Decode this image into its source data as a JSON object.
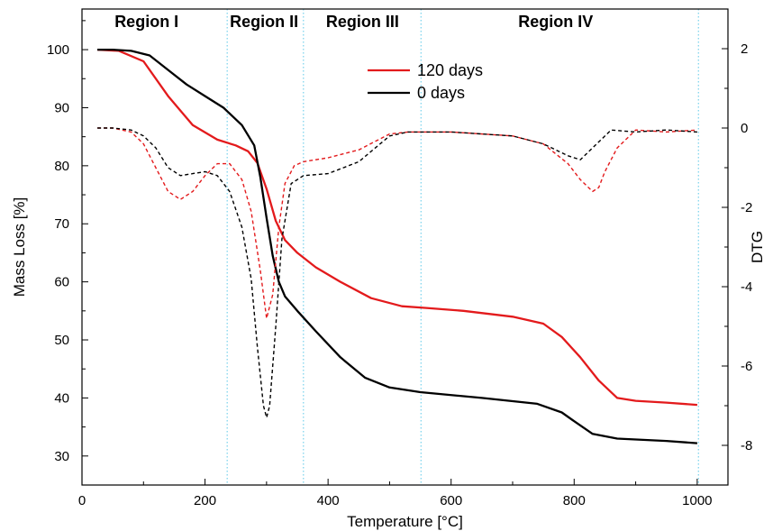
{
  "chart_data": {
    "type": "line",
    "xlabel": "Temperature [°C]",
    "ylabel": "Mass Loss [%]",
    "y2label": "DTG",
    "xlim": [
      0,
      1050
    ],
    "ylim": [
      25,
      107
    ],
    "y2lim": [
      -9,
      3
    ],
    "xticks": [
      0,
      200,
      400,
      600,
      800,
      1000
    ],
    "yticks": [
      30,
      40,
      50,
      60,
      70,
      80,
      90,
      100
    ],
    "y2ticks": [
      2,
      0,
      -2,
      -4,
      -6,
      -8
    ],
    "grid": false,
    "legend_position": "top-center",
    "region_boundaries": [
      236,
      360,
      551,
      1002
    ],
    "regions": [
      {
        "label": "Region I",
        "center": 105
      },
      {
        "label": "Region II",
        "center": 296
      },
      {
        "label": "Region III",
        "center": 456
      },
      {
        "label": "Region IV",
        "center": 770
      }
    ],
    "series": [
      {
        "name": "120 days",
        "axis": "left",
        "style": "solid",
        "color": "#e31a1c",
        "x": [
          25,
          60,
          100,
          140,
          180,
          220,
          250,
          270,
          285,
          300,
          315,
          330,
          350,
          380,
          420,
          470,
          520,
          560,
          620,
          700,
          750,
          780,
          810,
          840,
          870,
          900,
          950,
          1000
        ],
        "y": [
          100,
          99.8,
          98,
          92,
          87,
          84.5,
          83.5,
          82.5,
          80.5,
          76,
          70.5,
          67.2,
          65,
          62.5,
          60,
          57.2,
          55.8,
          55.5,
          55,
          54,
          52.8,
          50.5,
          47,
          43,
          40,
          39.5,
          39.2,
          38.8
        ]
      },
      {
        "name": "0 days",
        "axis": "left",
        "style": "solid",
        "color": "#000000",
        "x": [
          25,
          50,
          80,
          110,
          140,
          170,
          200,
          230,
          260,
          280,
          290,
          300,
          310,
          320,
          330,
          350,
          380,
          420,
          460,
          500,
          550,
          650,
          740,
          780,
          800,
          830,
          870,
          950,
          1000
        ],
        "y": [
          100,
          100,
          99.8,
          99,
          96.5,
          94,
          92,
          90,
          87,
          83.5,
          78,
          71,
          64.5,
          60,
          57.5,
          55,
          51.5,
          47,
          43.5,
          41.8,
          41,
          40,
          39,
          37.5,
          36,
          33.8,
          33,
          32.6,
          32.2
        ]
      },
      {
        "name": "120 days DTG",
        "axis": "right",
        "style": "dashed",
        "color": "#e31a1c",
        "x": [
          25,
          50,
          80,
          100,
          120,
          140,
          160,
          180,
          200,
          220,
          240,
          260,
          275,
          290,
          300,
          310,
          320,
          330,
          345,
          360,
          400,
          450,
          500,
          530,
          600,
          700,
          750,
          790,
          810,
          830,
          840,
          850,
          870,
          900,
          950,
          1000
        ],
        "y": [
          0,
          0,
          -0.1,
          -0.4,
          -1.0,
          -1.6,
          -1.8,
          -1.6,
          -1.2,
          -0.9,
          -0.9,
          -1.3,
          -2.1,
          -3.6,
          -4.8,
          -4.2,
          -2.5,
          -1.4,
          -0.95,
          -0.85,
          -0.75,
          -0.55,
          -0.15,
          -0.1,
          -0.1,
          -0.2,
          -0.4,
          -0.9,
          -1.3,
          -1.6,
          -1.5,
          -1.1,
          -0.5,
          -0.05,
          -0.1,
          -0.05
        ]
      },
      {
        "name": "0 days DTG",
        "axis": "right",
        "style": "dashed",
        "color": "#000000",
        "x": [
          25,
          50,
          80,
          100,
          120,
          140,
          160,
          180,
          200,
          220,
          240,
          260,
          275,
          285,
          295,
          300,
          305,
          315,
          325,
          340,
          360,
          400,
          450,
          500,
          530,
          600,
          700,
          750,
          790,
          810,
          830,
          860,
          900,
          950,
          1000
        ],
        "y": [
          0,
          0,
          -0.05,
          -0.2,
          -0.5,
          -1.0,
          -1.2,
          -1.15,
          -1.1,
          -1.2,
          -1.6,
          -2.5,
          -3.8,
          -5.5,
          -7.0,
          -7.3,
          -7.0,
          -5.0,
          -2.8,
          -1.4,
          -1.2,
          -1.15,
          -0.85,
          -0.2,
          -0.1,
          -0.1,
          -0.2,
          -0.4,
          -0.7,
          -0.8,
          -0.5,
          -0.05,
          -0.1,
          -0.05,
          -0.1
        ]
      }
    ]
  }
}
